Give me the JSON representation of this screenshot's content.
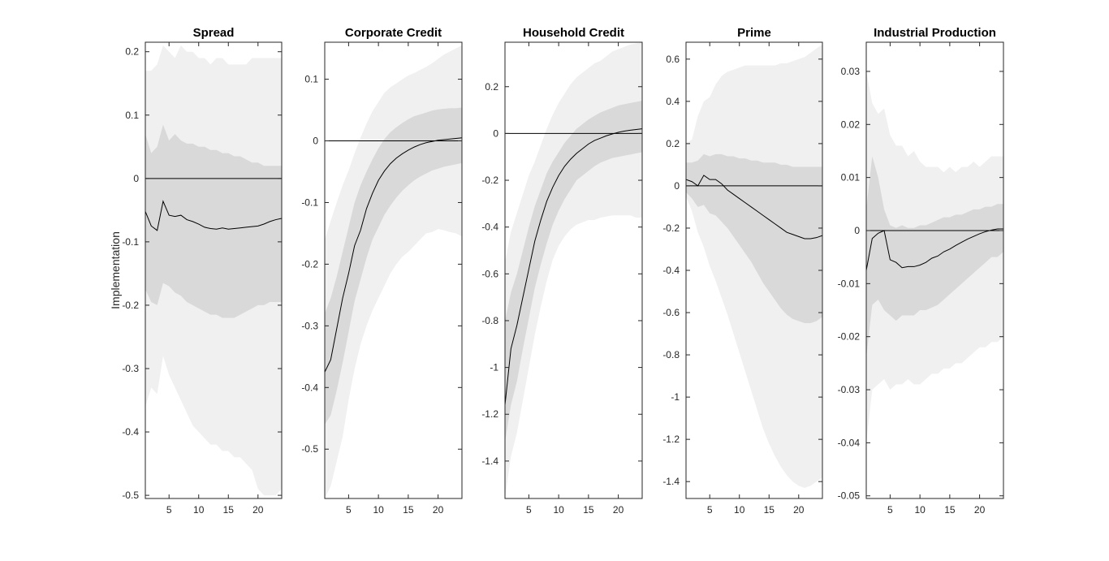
{
  "figure": {
    "ylabel": "Implementation"
  },
  "chart_data": [
    {
      "type": "line",
      "title": "Spread",
      "ylim": [
        -0.505,
        0.215
      ],
      "yticks": [
        0.2,
        0.1,
        0,
        -0.1,
        -0.2,
        -0.3,
        -0.4,
        -0.5
      ],
      "ytick_labels": [
        "0.2",
        "0.1",
        "0",
        "-0.1",
        "-0.2",
        "-0.3",
        "-0.4",
        "-0.5"
      ],
      "xlim": [
        1,
        24
      ],
      "xticks": [
        5,
        10,
        15,
        20
      ],
      "xtick_labels": [
        "5",
        "10",
        "15",
        "20"
      ],
      "zero_line": true,
      "series": [
        {
          "values": [
            -0.052,
            -0.075,
            -0.082,
            -0.036,
            -0.058,
            -0.06,
            -0.058,
            -0.065,
            -0.068,
            -0.072,
            -0.077,
            -0.079,
            -0.08,
            -0.078,
            -0.08,
            -0.079,
            -0.078,
            -0.077,
            -0.076,
            -0.075,
            -0.072,
            -0.068,
            -0.065,
            -0.063
          ]
        }
      ],
      "bands": [
        {
          "level": "outer",
          "upper": [
            0.17,
            0.17,
            0.18,
            0.21,
            0.2,
            0.19,
            0.21,
            0.2,
            0.2,
            0.19,
            0.19,
            0.18,
            0.19,
            0.19,
            0.18,
            0.18,
            0.18,
            0.18,
            0.19,
            0.19,
            0.19,
            0.19,
            0.19,
            0.19
          ],
          "lower": [
            -0.36,
            -0.33,
            -0.34,
            -0.28,
            -0.31,
            -0.33,
            -0.35,
            -0.37,
            -0.39,
            -0.4,
            -0.41,
            -0.42,
            -0.42,
            -0.43,
            -0.43,
            -0.44,
            -0.44,
            -0.45,
            -0.46,
            -0.49,
            -0.5,
            -0.5,
            -0.5,
            -0.49
          ]
        },
        {
          "level": "inner",
          "upper": [
            0.07,
            0.04,
            0.05,
            0.085,
            0.06,
            0.07,
            0.06,
            0.055,
            0.055,
            0.05,
            0.05,
            0.045,
            0.045,
            0.04,
            0.04,
            0.035,
            0.035,
            0.03,
            0.025,
            0.025,
            0.02,
            0.02,
            0.02,
            0.02
          ],
          "lower": [
            -0.175,
            -0.195,
            -0.2,
            -0.165,
            -0.17,
            -0.18,
            -0.185,
            -0.195,
            -0.2,
            -0.205,
            -0.21,
            -0.215,
            -0.215,
            -0.22,
            -0.22,
            -0.22,
            -0.215,
            -0.21,
            -0.205,
            -0.2,
            -0.2,
            -0.195,
            -0.195,
            -0.195
          ]
        }
      ]
    },
    {
      "type": "line",
      "title": "Corporate Credit",
      "ylim": [
        -0.58,
        0.16
      ],
      "yticks": [
        0.1,
        0,
        -0.1,
        -0.2,
        -0.3,
        -0.4,
        -0.5
      ],
      "ytick_labels": [
        "0.1",
        "0",
        "-0.1",
        "-0.2",
        "-0.3",
        "-0.4",
        "-0.5"
      ],
      "xlim": [
        1,
        24
      ],
      "xticks": [
        5,
        10,
        15,
        20
      ],
      "xtick_labels": [
        "5",
        "10",
        "15",
        "20"
      ],
      "zero_line": true,
      "series": [
        {
          "values": [
            -0.375,
            -0.355,
            -0.305,
            -0.255,
            -0.215,
            -0.17,
            -0.145,
            -0.11,
            -0.085,
            -0.064,
            -0.049,
            -0.037,
            -0.028,
            -0.021,
            -0.015,
            -0.01,
            -0.006,
            -0.003,
            -0.001,
            0.001,
            0.002,
            0.003,
            0.004,
            0.005
          ]
        }
      ],
      "bands": [
        {
          "level": "outer",
          "upper": [
            -0.16,
            -0.13,
            -0.1,
            -0.072,
            -0.048,
            -0.02,
            0.005,
            0.028,
            0.048,
            0.063,
            0.078,
            0.087,
            0.093,
            0.1,
            0.106,
            0.11,
            0.115,
            0.12,
            0.126,
            0.133,
            0.14,
            0.145,
            0.15,
            0.155
          ],
          "lower": [
            -0.58,
            -0.56,
            -0.52,
            -0.48,
            -0.42,
            -0.37,
            -0.33,
            -0.3,
            -0.275,
            -0.255,
            -0.235,
            -0.215,
            -0.2,
            -0.188,
            -0.18,
            -0.17,
            -0.16,
            -0.15,
            -0.148,
            -0.143,
            -0.145,
            -0.148,
            -0.15,
            -0.155
          ]
        },
        {
          "level": "inner",
          "upper": [
            -0.28,
            -0.255,
            -0.22,
            -0.18,
            -0.14,
            -0.1,
            -0.072,
            -0.05,
            -0.03,
            -0.012,
            0.003,
            0.014,
            0.022,
            0.029,
            0.035,
            0.04,
            0.043,
            0.046,
            0.049,
            0.051,
            0.052,
            0.053,
            0.053,
            0.054
          ],
          "lower": [
            -0.46,
            -0.445,
            -0.405,
            -0.36,
            -0.31,
            -0.26,
            -0.225,
            -0.19,
            -0.16,
            -0.14,
            -0.12,
            -0.105,
            -0.092,
            -0.081,
            -0.072,
            -0.064,
            -0.058,
            -0.053,
            -0.048,
            -0.045,
            -0.042,
            -0.04,
            -0.038,
            -0.036
          ]
        }
      ]
    },
    {
      "type": "line",
      "title": "Household Credit",
      "ylim": [
        -1.56,
        0.39
      ],
      "yticks": [
        0.2,
        0,
        -0.2,
        -0.4,
        -0.6,
        -0.8,
        -1,
        -1.2,
        -1.4
      ],
      "ytick_labels": [
        "0.2",
        "0",
        "-0.2",
        "-0.4",
        "-0.6",
        "-0.8",
        "-1",
        "-1.2",
        "-1.4"
      ],
      "xlim": [
        1,
        24
      ],
      "xticks": [
        5,
        10,
        15,
        20
      ],
      "xtick_labels": [
        "5",
        "10",
        "15",
        "20"
      ],
      "zero_line": true,
      "series": [
        {
          "values": [
            -1.16,
            -0.92,
            -0.82,
            -0.7,
            -0.58,
            -0.46,
            -0.37,
            -0.29,
            -0.23,
            -0.18,
            -0.14,
            -0.11,
            -0.085,
            -0.065,
            -0.045,
            -0.03,
            -0.02,
            -0.01,
            -0.002,
            0.005,
            0.01,
            0.014,
            0.017,
            0.02
          ]
        }
      ],
      "bands": [
        {
          "level": "outer",
          "upper": [
            -0.55,
            -0.42,
            -0.34,
            -0.26,
            -0.18,
            -0.12,
            -0.05,
            0.02,
            0.08,
            0.13,
            0.17,
            0.21,
            0.24,
            0.26,
            0.28,
            0.3,
            0.31,
            0.33,
            0.35,
            0.36,
            0.37,
            0.38,
            0.385,
            0.39
          ],
          "lower": [
            -1.56,
            -1.38,
            -1.28,
            -1.14,
            -1.0,
            -0.86,
            -0.74,
            -0.63,
            -0.54,
            -0.48,
            -0.44,
            -0.41,
            -0.39,
            -0.38,
            -0.37,
            -0.37,
            -0.36,
            -0.355,
            -0.35,
            -0.35,
            -0.35,
            -0.35,
            -0.36,
            -0.36
          ]
        },
        {
          "level": "inner",
          "upper": [
            -0.8,
            -0.68,
            -0.6,
            -0.5,
            -0.4,
            -0.31,
            -0.24,
            -0.17,
            -0.12,
            -0.08,
            -0.04,
            -0.01,
            0.02,
            0.04,
            0.06,
            0.075,
            0.09,
            0.1,
            0.11,
            0.12,
            0.125,
            0.13,
            0.135,
            0.14
          ],
          "lower": [
            -1.32,
            -1.16,
            -1.06,
            -0.92,
            -0.79,
            -0.66,
            -0.56,
            -0.47,
            -0.39,
            -0.33,
            -0.28,
            -0.24,
            -0.2,
            -0.18,
            -0.16,
            -0.14,
            -0.125,
            -0.115,
            -0.105,
            -0.1,
            -0.095,
            -0.09,
            -0.085,
            -0.08
          ]
        }
      ]
    },
    {
      "type": "line",
      "title": "Prime",
      "ylim": [
        -1.48,
        0.68
      ],
      "yticks": [
        0.6,
        0.4,
        0.2,
        0,
        -0.2,
        -0.4,
        -0.6,
        -0.8,
        -1,
        -1.2,
        -1.4
      ],
      "ytick_labels": [
        "0.6",
        "0.4",
        "0.2",
        "0",
        "-0.2",
        "-0.4",
        "-0.6",
        "-0.8",
        "-1",
        "-1.2",
        "-1.4"
      ],
      "xlim": [
        1,
        24
      ],
      "xticks": [
        5,
        10,
        15,
        20
      ],
      "xtick_labels": [
        "5",
        "10",
        "15",
        "20"
      ],
      "zero_line": true,
      "series": [
        {
          "values": [
            0.03,
            0.02,
            0.0,
            0.05,
            0.03,
            0.03,
            0.01,
            -0.02,
            -0.04,
            -0.06,
            -0.08,
            -0.1,
            -0.12,
            -0.14,
            -0.16,
            -0.18,
            -0.2,
            -0.22,
            -0.23,
            -0.24,
            -0.25,
            -0.25,
            -0.245,
            -0.235
          ]
        }
      ],
      "bands": [
        {
          "level": "outer",
          "upper": [
            0.2,
            0.22,
            0.33,
            0.4,
            0.42,
            0.48,
            0.52,
            0.54,
            0.55,
            0.56,
            0.57,
            0.57,
            0.57,
            0.57,
            0.57,
            0.57,
            0.58,
            0.58,
            0.59,
            0.6,
            0.61,
            0.63,
            0.65,
            0.67
          ],
          "lower": [
            -0.05,
            -0.12,
            -0.22,
            -0.29,
            -0.38,
            -0.45,
            -0.53,
            -0.61,
            -0.7,
            -0.79,
            -0.88,
            -0.97,
            -1.06,
            -1.15,
            -1.22,
            -1.28,
            -1.33,
            -1.37,
            -1.4,
            -1.42,
            -1.43,
            -1.42,
            -1.4,
            -1.38
          ]
        },
        {
          "level": "inner",
          "upper": [
            0.11,
            0.11,
            0.12,
            0.15,
            0.14,
            0.15,
            0.15,
            0.14,
            0.14,
            0.13,
            0.13,
            0.12,
            0.12,
            0.11,
            0.11,
            0.11,
            0.1,
            0.1,
            0.09,
            0.09,
            0.09,
            0.09,
            0.09,
            0.09
          ],
          "lower": [
            -0.03,
            -0.06,
            -0.1,
            -0.09,
            -0.13,
            -0.14,
            -0.17,
            -0.2,
            -0.24,
            -0.28,
            -0.32,
            -0.36,
            -0.41,
            -0.46,
            -0.5,
            -0.54,
            -0.58,
            -0.61,
            -0.63,
            -0.64,
            -0.65,
            -0.65,
            -0.64,
            -0.62
          ]
        }
      ]
    },
    {
      "type": "line",
      "title": "Industrial Production",
      "ylim": [
        -0.0505,
        0.0355
      ],
      "yticks": [
        0.03,
        0.02,
        0.01,
        0,
        -0.01,
        -0.02,
        -0.03,
        -0.04,
        -0.05
      ],
      "ytick_labels": [
        "0.03",
        "0.02",
        "0.01",
        "0",
        "-0.01",
        "-0.02",
        "-0.03",
        "-0.04",
        "-0.05"
      ],
      "xlim": [
        1,
        24
      ],
      "xticks": [
        5,
        10,
        15,
        20
      ],
      "xtick_labels": [
        "5",
        "10",
        "15",
        "20"
      ],
      "zero_line": true,
      "series": [
        {
          "values": [
            -0.0075,
            -0.0015,
            -0.0005,
            0.0,
            -0.0055,
            -0.006,
            -0.007,
            -0.0068,
            -0.0068,
            -0.0065,
            -0.006,
            -0.0052,
            -0.0048,
            -0.004,
            -0.0035,
            -0.0028,
            -0.0022,
            -0.0016,
            -0.0011,
            -0.0006,
            -0.0002,
            0.0001,
            0.0003,
            0.0003
          ]
        }
      ],
      "bands": [
        {
          "level": "outer",
          "upper": [
            0.03,
            0.024,
            0.022,
            0.023,
            0.018,
            0.016,
            0.016,
            0.014,
            0.015,
            0.013,
            0.012,
            0.012,
            0.012,
            0.011,
            0.012,
            0.011,
            0.012,
            0.012,
            0.013,
            0.012,
            0.013,
            0.014,
            0.014,
            0.014
          ],
          "lower": [
            -0.04,
            -0.03,
            -0.029,
            -0.028,
            -0.03,
            -0.029,
            -0.029,
            -0.028,
            -0.029,
            -0.029,
            -0.028,
            -0.027,
            -0.027,
            -0.026,
            -0.026,
            -0.025,
            -0.025,
            -0.024,
            -0.023,
            -0.022,
            -0.022,
            -0.021,
            -0.021,
            -0.02
          ]
        },
        {
          "level": "inner",
          "upper": [
            0.004,
            0.014,
            0.01,
            0.004,
            0.001,
            0.0005,
            0.001,
            0.0005,
            0.0005,
            0.001,
            0.001,
            0.0015,
            0.002,
            0.0025,
            0.0025,
            0.003,
            0.003,
            0.0035,
            0.004,
            0.004,
            0.0045,
            0.0045,
            0.005,
            0.005
          ],
          "lower": [
            -0.024,
            -0.014,
            -0.013,
            -0.015,
            -0.016,
            -0.017,
            -0.016,
            -0.016,
            -0.016,
            -0.015,
            -0.015,
            -0.0145,
            -0.014,
            -0.013,
            -0.012,
            -0.011,
            -0.01,
            -0.009,
            -0.008,
            -0.007,
            -0.006,
            -0.005,
            -0.005,
            -0.004
          ]
        }
      ]
    }
  ]
}
